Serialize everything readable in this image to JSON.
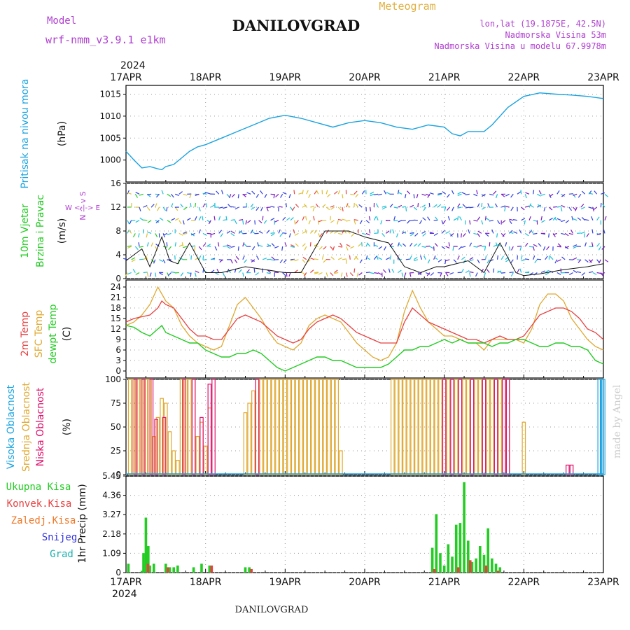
{
  "header": {
    "model_label": "Model",
    "model_name": "wrf-nmm_v3.9.1 e1km",
    "station": "DANILOVGRAD",
    "kind": "Meteogram",
    "lonlat": "lon,lat (19.1875E, 42.5N)",
    "altitude": "Nadmorska Visina 53m",
    "model_altitude": "Nadmorska Visina u modelu 67.9978m",
    "year": "2024",
    "footer_station": "DANILOVGRAD",
    "credit": "made by Angel"
  },
  "colors": {
    "pressure": "#1aa3e0",
    "t2m": "#e84040",
    "sfc": "#e0a830",
    "dewpt": "#22cc22",
    "wind_label": "#22cc22",
    "high_cloud": "#1aa3e0",
    "mid_cloud": "#e0a830",
    "low_cloud": "#e0106a",
    "title_purple": "#b040d0",
    "total_precip": "#22cc22",
    "convective": "#e84040",
    "frozen": "#f07828",
    "snow": "#3030e0",
    "grad": "#1ab0b0"
  },
  "chart_data": [
    {
      "type": "line",
      "panel": "pressure",
      "ylabel_1": "Pritisak na nivou mora",
      "ylabel_2": "(hPa)",
      "ylim": [
        995,
        1017
      ],
      "yticks": [
        1000,
        1005,
        1010,
        1015
      ],
      "x_days": [
        "17APR",
        "18APR",
        "19APR",
        "20APR",
        "21APR",
        "22APR",
        "23APR"
      ],
      "series": [
        {
          "x": [
            0,
            0.1,
            0.2,
            0.3,
            0.4,
            0.45,
            0.5,
            0.6,
            0.7,
            0.8,
            0.9,
            1.0,
            1.2,
            1.4,
            1.6,
            1.8,
            2.0,
            2.2,
            2.4,
            2.6,
            2.8,
            3.0,
            3.2,
            3.4,
            3.6,
            3.8,
            4.0,
            4.1,
            4.2,
            4.3,
            4.4,
            4.5,
            4.6,
            4.8,
            5.0,
            5.2,
            5.4,
            5.6,
            5.8,
            6.0
          ],
          "values": [
            1002,
            1000,
            998.2,
            998.5,
            998,
            997.8,
            998.5,
            999,
            1000.5,
            1002,
            1003,
            1003.5,
            1005,
            1006.5,
            1008,
            1009.5,
            1010.2,
            1009.5,
            1008.5,
            1007.5,
            1008.5,
            1009,
            1008.5,
            1007.5,
            1007,
            1008,
            1007.5,
            1006,
            1005.5,
            1006.5,
            1006.5,
            1006.5,
            1008,
            1012,
            1014.5,
            1015.3,
            1015,
            1014.8,
            1014.5,
            1014
          ]
        }
      ]
    },
    {
      "type": "line",
      "panel": "wind",
      "ylabel_1": "10m Vjetar",
      "ylabel_2": "Brzina i Pravac",
      "ylabel_3": "(m/s)",
      "compass": "W <-|-> E",
      "compass_ns": "N ^ v S",
      "ylim": [
        0,
        16
      ],
      "yticks": [
        0,
        4,
        8,
        12,
        16
      ],
      "series": [
        {
          "name": "speed",
          "x": [
            0,
            0.2,
            0.3,
            0.45,
            0.55,
            0.65,
            0.8,
            1.0,
            1.2,
            1.5,
            2.0,
            2.2,
            2.5,
            2.8,
            3.0,
            3.3,
            3.5,
            3.7,
            3.9,
            4.0,
            4.3,
            4.5,
            4.7,
            4.9,
            5.0,
            5.2,
            5.5,
            5.8,
            6.0
          ],
          "values": [
            3,
            5,
            2,
            7,
            3,
            2.5,
            6,
            1,
            1,
            2,
            1,
            1,
            8,
            8,
            7,
            6,
            2,
            1,
            2,
            2,
            3,
            1,
            6,
            1,
            0.5,
            0.8,
            1.5,
            2,
            2.5
          ]
        }
      ]
    },
    {
      "type": "line",
      "panel": "temperature",
      "ylabel_1": "2m Temp",
      "ylabel_2": "SFC Temp",
      "ylabel_3": "dewpt Temp",
      "ylabel_4": "(C)",
      "ylim": [
        -2,
        26
      ],
      "yticks": [
        0,
        3,
        6,
        9,
        12,
        15,
        18,
        21,
        24
      ],
      "series": [
        {
          "name": "2m Temp",
          "x": [
            0,
            0.1,
            0.2,
            0.3,
            0.4,
            0.45,
            0.5,
            0.6,
            0.7,
            0.8,
            0.9,
            1.0,
            1.1,
            1.2,
            1.3,
            1.4,
            1.5,
            1.6,
            1.7,
            1.8,
            1.9,
            2.0,
            2.1,
            2.2,
            2.3,
            2.4,
            2.5,
            2.6,
            2.7,
            2.8,
            2.9,
            3.0,
            3.1,
            3.2,
            3.3,
            3.4,
            3.5,
            3.6,
            3.7,
            3.8,
            3.9,
            4.0,
            4.1,
            4.2,
            4.3,
            4.4,
            4.5,
            4.6,
            4.7,
            4.8,
            4.9,
            5.0,
            5.1,
            5.2,
            5.3,
            5.4,
            5.5,
            5.6,
            5.7,
            5.8,
            5.9,
            6.0
          ],
          "values": [
            14,
            15,
            15.5,
            16,
            18,
            20,
            19,
            18,
            15,
            12,
            10,
            10,
            9,
            9,
            12,
            15,
            16,
            15,
            14,
            12,
            10,
            9,
            8,
            9,
            12,
            14,
            15,
            16,
            15,
            13,
            11,
            10,
            9,
            8,
            8,
            8,
            14,
            18,
            16,
            14,
            13,
            12,
            11,
            10,
            9,
            9,
            8,
            9,
            10,
            9,
            9,
            10,
            13,
            16,
            17,
            18,
            18,
            17,
            15,
            12,
            11,
            9
          ]
        },
        {
          "name": "SFC Temp",
          "x": [
            0,
            0.1,
            0.2,
            0.3,
            0.4,
            0.45,
            0.5,
            0.6,
            0.7,
            0.8,
            0.9,
            1.0,
            1.1,
            1.2,
            1.3,
            1.4,
            1.5,
            1.6,
            1.7,
            1.8,
            1.9,
            2.0,
            2.1,
            2.2,
            2.3,
            2.4,
            2.5,
            2.6,
            2.7,
            2.8,
            2.9,
            3.0,
            3.1,
            3.2,
            3.3,
            3.4,
            3.5,
            3.6,
            3.7,
            3.8,
            3.9,
            4.0,
            4.1,
            4.2,
            4.3,
            4.4,
            4.5,
            4.6,
            4.7,
            4.8,
            4.9,
            5.0,
            5.1,
            5.2,
            5.3,
            5.4,
            5.5,
            5.6,
            5.7,
            5.8,
            5.9,
            6.0
          ],
          "values": [
            13,
            14,
            16,
            19,
            24,
            22,
            20,
            18,
            13,
            10,
            8,
            7,
            6,
            7,
            13,
            19,
            21,
            18,
            15,
            11,
            8,
            7,
            6,
            8,
            13,
            15,
            16,
            15,
            14,
            11,
            8,
            6,
            4,
            3,
            4,
            8,
            17,
            23,
            18,
            14,
            12,
            10,
            10,
            9,
            8,
            8,
            6,
            9,
            9,
            9,
            9,
            8,
            12,
            19,
            22,
            22,
            20,
            15,
            12,
            9,
            7,
            6
          ]
        },
        {
          "name": "dewpt Temp",
          "x": [
            0,
            0.1,
            0.2,
            0.3,
            0.4,
            0.45,
            0.5,
            0.6,
            0.7,
            0.8,
            0.9,
            1.0,
            1.1,
            1.2,
            1.3,
            1.4,
            1.5,
            1.6,
            1.7,
            1.8,
            1.9,
            2.0,
            2.1,
            2.2,
            2.3,
            2.4,
            2.5,
            2.6,
            2.7,
            2.8,
            2.9,
            3.0,
            3.1,
            3.2,
            3.3,
            3.4,
            3.5,
            3.6,
            3.7,
            3.8,
            3.9,
            4.0,
            4.1,
            4.2,
            4.3,
            4.4,
            4.5,
            4.6,
            4.7,
            4.8,
            4.9,
            5.0,
            5.1,
            5.2,
            5.3,
            5.4,
            5.5,
            5.6,
            5.7,
            5.8,
            5.9,
            6.0
          ],
          "values": [
            13,
            12.5,
            11,
            10,
            12,
            13,
            11,
            10,
            9,
            8,
            8,
            6,
            5,
            4,
            4,
            5,
            5,
            6,
            5,
            3,
            1,
            0,
            1,
            2,
            3,
            4,
            4,
            3,
            3,
            2,
            1,
            1,
            1,
            1,
            2,
            4,
            6,
            6,
            7,
            7,
            8,
            9,
            8,
            9,
            8,
            8,
            8,
            7,
            8,
            8,
            9,
            9,
            8,
            7,
            7,
            8,
            8,
            7,
            7,
            6,
            3,
            2
          ]
        }
      ]
    },
    {
      "type": "bar",
      "panel": "cloud",
      "ylabel_1": "Visoka Oblacnost",
      "ylabel_2": "Srednja Oblacnost",
      "ylabel_3": "Niska Oblacnost",
      "ylabel_4": "(%)",
      "ylim": [
        0,
        100
      ],
      "yticks": [
        0,
        25,
        50,
        75,
        100
      ],
      "series": [
        {
          "name": "Srednja Oblacnost",
          "x": [
            0.05,
            0.1,
            0.15,
            0.2,
            0.25,
            0.3,
            0.35,
            0.4,
            0.45,
            0.5,
            0.55,
            0.6,
            0.65,
            0.7,
            0.75,
            0.8,
            0.85,
            0.9,
            0.95,
            1.0,
            1.05,
            1.1,
            1.5,
            1.55,
            1.6,
            1.65,
            1.7,
            1.75,
            1.8,
            1.85,
            1.9,
            1.95,
            2.0,
            2.05,
            2.1,
            2.15,
            2.2,
            2.25,
            2.3,
            2.35,
            2.4,
            2.45,
            2.5,
            2.55,
            2.6,
            2.65,
            2.7,
            2.75,
            2.8,
            2.85,
            2.9,
            3.35,
            3.4,
            3.45,
            3.5,
            3.55,
            3.6,
            3.65,
            3.7,
            3.75,
            3.8,
            3.85,
            3.9,
            3.95,
            4.0,
            4.05,
            4.1,
            4.15,
            4.2,
            4.25,
            4.3,
            4.35,
            4.4,
            4.45,
            4.5,
            4.55,
            4.6,
            4.65,
            4.7,
            4.75,
            4.8,
            5.0
          ],
          "values": [
            100,
            100,
            100,
            100,
            100,
            100,
            40,
            60,
            80,
            75,
            45,
            25,
            15,
            100,
            100,
            100,
            100,
            40,
            55,
            30,
            70,
            0,
            65,
            75,
            88,
            100,
            100,
            100,
            100,
            100,
            100,
            100,
            100,
            100,
            100,
            100,
            100,
            100,
            100,
            100,
            100,
            100,
            100,
            100,
            100,
            100,
            25,
            0,
            0,
            0,
            0,
            100,
            100,
            100,
            100,
            100,
            100,
            100,
            100,
            100,
            100,
            100,
            100,
            100,
            100,
            100,
            100,
            100,
            100,
            100,
            100,
            100,
            100,
            100,
            100,
            100,
            100,
            100,
            100,
            100,
            100,
            55
          ]
        },
        {
          "name": "Niska Oblacnost",
          "x": [
            0.12,
            0.22,
            0.32,
            0.38,
            0.48,
            0.57,
            0.73,
            0.85,
            0.95,
            1.05,
            1.1,
            1.65,
            4.0,
            4.1,
            4.2,
            4.35,
            4.5,
            4.65,
            4.75,
            4.8,
            5.55,
            5.6
          ],
          "values": [
            100,
            100,
            100,
            58,
            60,
            0,
            100,
            100,
            60,
            95,
            100,
            100,
            100,
            100,
            100,
            100,
            100,
            100,
            100,
            100,
            10,
            10
          ]
        },
        {
          "name": "Visoka Oblacnost",
          "x": [
            5.95,
            5.98,
            6.0
          ],
          "values": [
            100,
            100,
            100
          ]
        }
      ]
    },
    {
      "type": "bar",
      "panel": "precip",
      "legend": [
        "Ukupna Kisa",
        "Konvek.Kisa",
        "Zaledj.Kisa",
        "Snijeg",
        "Grad"
      ],
      "ylabel": "1hr Precip (mm)",
      "ylim": [
        0,
        5.45
      ],
      "yticks": [
        0,
        1.09,
        2.18,
        3.27,
        4.36,
        5.45
      ],
      "series": [
        {
          "name": "Ukupna Kisa",
          "x": [
            0.03,
            0.2,
            0.22,
            0.25,
            0.28,
            0.3,
            0.35,
            0.5,
            0.55,
            0.6,
            0.65,
            0.85,
            0.95,
            1.05,
            1.5,
            1.55,
            3.85,
            3.9,
            3.95,
            4.0,
            4.05,
            4.1,
            4.15,
            4.2,
            4.25,
            4.3,
            4.35,
            4.4,
            4.45,
            4.5,
            4.55,
            4.6,
            4.65,
            4.7
          ],
          "values": [
            0.5,
            0.1,
            1.1,
            3.1,
            1.5,
            0.4,
            0.5,
            0.5,
            0.3,
            0.3,
            0.4,
            0.3,
            0.5,
            0.4,
            0.3,
            0.3,
            1.4,
            3.3,
            1.1,
            0.4,
            1.6,
            0.9,
            2.7,
            2.8,
            5.1,
            1.8,
            0.6,
            0.8,
            1.5,
            1.0,
            2.5,
            0.8,
            0.5,
            0.3
          ]
        },
        {
          "name": "Konvek.Kisa",
          "x": [
            0.25,
            0.5,
            1.05,
            1.55,
            3.85,
            4.15,
            4.3,
            4.5,
            4.65
          ],
          "values": [
            0.5,
            0.3,
            0.4,
            0.2,
            0.2,
            0.3,
            0.7,
            0.4,
            0.1
          ]
        }
      ]
    }
  ]
}
